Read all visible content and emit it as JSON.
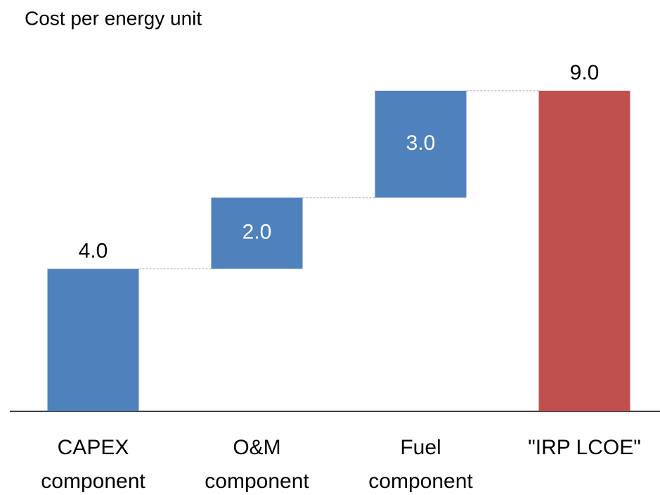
{
  "chart_data": {
    "type": "waterfall",
    "title": "Cost per energy unit",
    "categories": [
      [
        "CAPEX",
        "component"
      ],
      [
        "O&M",
        "component"
      ],
      [
        "Fuel",
        "component"
      ],
      [
        "\"IRP LCOE\""
      ]
    ],
    "values": [
      4.0,
      2.0,
      3.0,
      9.0
    ],
    "value_labels": [
      "4.0",
      "2.0",
      "3.0",
      "9.0"
    ],
    "is_total": [
      false,
      false,
      false,
      true
    ],
    "colors": {
      "step": "#4f81bd",
      "total": "#c0504d"
    }
  }
}
